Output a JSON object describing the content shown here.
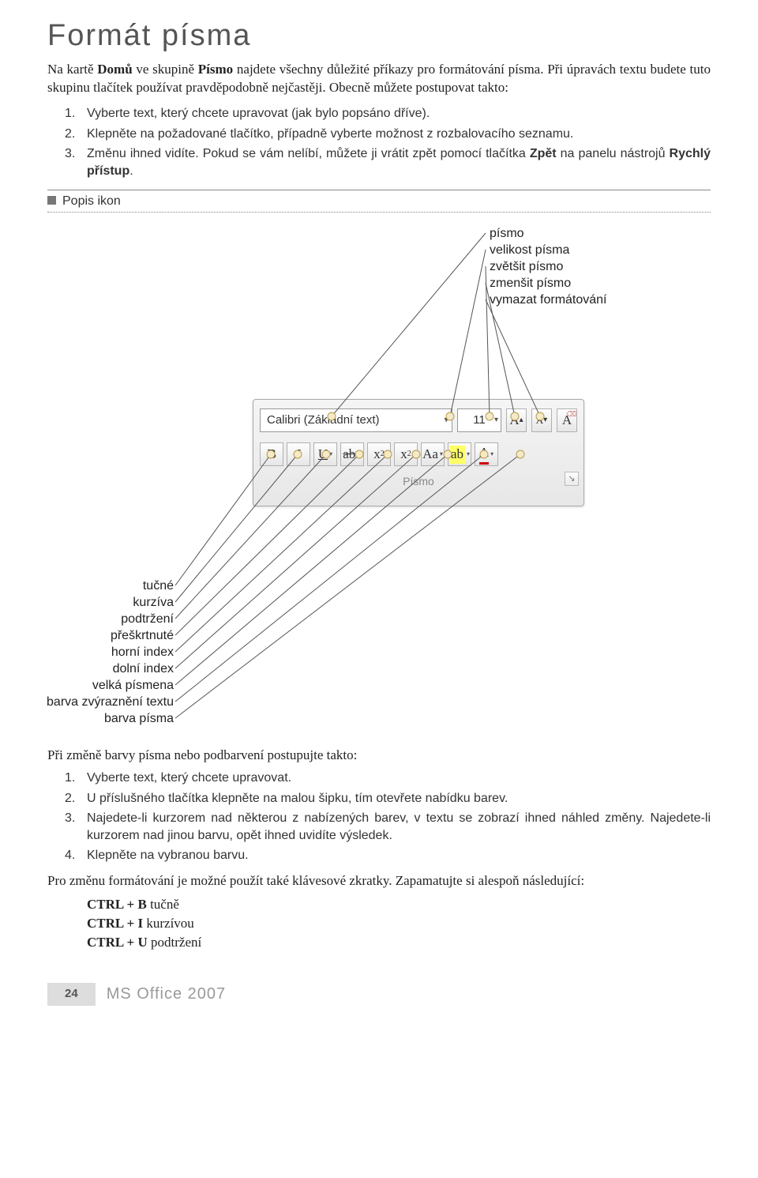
{
  "title": "Formát písma",
  "intro": "Na kartě <b>Domů</b> ve skupině <b>Písmo</b> najdete všechny důležité příkazy pro formátování písma. Při úpravách textu budete tuto skupinu tlačítek používat pravděpodobně nejčastěji. Obecně můžete postupovat takto:",
  "steps1": [
    "Vyberte text, který chcete upravovat (jak bylo popsáno dříve).",
    "Klepněte na požadované tlačítko, případně vyberte možnost z rozbalovacího seznamu.",
    "Změnu ihned vidíte. Pokud se vám nelíbí, můžete ji vrátit zpět pomocí tlačítka <b>Zpět</b> na panelu nástrojů <b>Rychlý přístup</b>."
  ],
  "section_label": "Popis ikon",
  "callouts_top": [
    "písmo",
    "velikost písma",
    "zvětšit písmo",
    "zmenšit písmo",
    "vymazat formátování"
  ],
  "callouts_bottom": [
    "tučné",
    "kurzíva",
    "podtržení",
    "přeškrtnuté",
    "horní index",
    "dolní index",
    "velká písmena",
    "barva zvýraznění textu",
    "barva písma"
  ],
  "ribbon": {
    "font_name": "Calibri (Základní text)",
    "font_size": "11",
    "group_label": "Písmo"
  },
  "color_intro": "Při změně barvy písma nebo podbarvení postupujte takto:",
  "steps2": [
    "Vyberte text, který chcete upravovat.",
    "U příslušného tlačítka klepněte na malou šipku, tím otevřete nabídku barev.",
    "Najedete-li kurzorem nad některou z nabízených barev, v textu se zobrazí ihned náhled změny. Najedete-li kurzorem nad jinou barvu, opět ihned uvidíte výsledek.",
    "Klepněte na vybranou barvu."
  ],
  "outro": "Pro změnu formátování je možné použít také klávesové zkratky. Zapamatujte si alespoň následující:",
  "shortcuts": [
    {
      "keys": "CTRL + B",
      "desc": "tučně"
    },
    {
      "keys": "CTRL + I",
      "desc": "kurzívou"
    },
    {
      "keys": "CTRL + U",
      "desc": "podtržení"
    }
  ],
  "footer": {
    "page": "24",
    "book": "MS Office 2007"
  },
  "colors": {
    "line": "#555555",
    "dot_fill": "#f4e9c9",
    "dot_stroke": "#b89b4a"
  }
}
